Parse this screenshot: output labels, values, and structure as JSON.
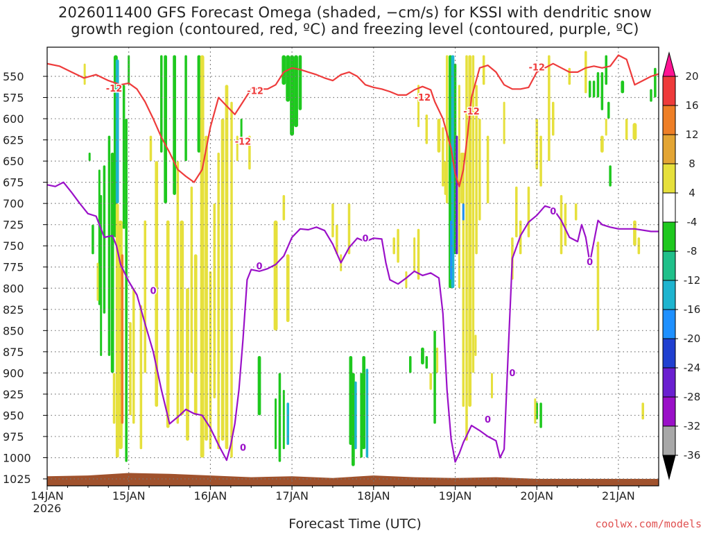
{
  "title_line1": "2026011400 GFS Forecast Omega (shaded, −cm/s) for KSSI with dendritic snow",
  "title_line2": "growth region (contoured, red, ºC) and freezing level (contoured, purple, ºC)",
  "xlabel": "Forecast Time (UTC)",
  "credit": "coolwx.com/models",
  "colors": {
    "dendritic_contour": "#ee3b3b",
    "freezing_contour": "#9a10c8",
    "terrain": "#a0522d",
    "grid": "#777777"
  },
  "chart_data": {
    "type": "heatmap",
    "x_axis": {
      "label": "Forecast Time (UTC)",
      "ticks": [
        "14JAN",
        "15JAN",
        "16JAN",
        "17JAN",
        "18JAN",
        "19JAN",
        "20JAN",
        "21JAN"
      ],
      "year_label": "2026",
      "range_days": [
        0,
        7.5
      ]
    },
    "y_axis": {
      "label": "",
      "ticks": [
        550,
        575,
        600,
        625,
        650,
        675,
        700,
        725,
        750,
        775,
        800,
        825,
        850,
        875,
        900,
        925,
        950,
        975,
        1000,
        1025
      ],
      "range": [
        1035,
        525
      ],
      "inverted": true
    },
    "colorbar": {
      "ticks": [
        20,
        16,
        12,
        8,
        4,
        -4,
        -8,
        -12,
        -16,
        -20,
        -24,
        -28,
        -32,
        -36
      ],
      "colors": [
        "#ff1493",
        "#ee3b3b",
        "#ee7f27",
        "#e3a534",
        "#e6e03c",
        "#ffffff",
        "#1ec81e",
        "#20c08a",
        "#1eb4cf",
        "#1e90ff",
        "#2040d0",
        "#6a1fd0",
        "#9a10c8",
        "#a8a8a8",
        "#000000"
      ]
    },
    "contour_labels": {
      "dendritic": "-12",
      "freezing": "0"
    },
    "series": [
      {
        "name": "-12",
        "points": [
          [
            0,
            535
          ],
          [
            0.15,
            538
          ],
          [
            0.3,
            545
          ],
          [
            0.45,
            552
          ],
          [
            0.6,
            548
          ],
          [
            0.75,
            555
          ],
          [
            0.9,
            560
          ],
          [
            1.0,
            558
          ],
          [
            1.1,
            565
          ],
          [
            1.2,
            580
          ],
          [
            1.3,
            600
          ],
          [
            1.4,
            622
          ],
          [
            1.5,
            640
          ],
          [
            1.6,
            660
          ],
          [
            1.7,
            668
          ],
          [
            1.8,
            675
          ],
          [
            1.9,
            660
          ],
          [
            2.0,
            610
          ],
          [
            2.1,
            575
          ],
          [
            2.2,
            585
          ],
          [
            2.3,
            595
          ],
          [
            2.4,
            580
          ],
          [
            2.5,
            565
          ],
          [
            2.6,
            565
          ],
          [
            2.7,
            565
          ],
          [
            2.8,
            560
          ],
          [
            2.9,
            545
          ],
          [
            3.0,
            540
          ],
          [
            3.1,
            542
          ],
          [
            3.2,
            545
          ],
          [
            3.3,
            548
          ],
          [
            3.4,
            552
          ],
          [
            3.5,
            555
          ],
          [
            3.6,
            548
          ],
          [
            3.7,
            545
          ],
          [
            3.8,
            550
          ],
          [
            3.9,
            560
          ],
          [
            4.0,
            563
          ],
          [
            4.1,
            565
          ],
          [
            4.2,
            568
          ],
          [
            4.3,
            572
          ],
          [
            4.4,
            572
          ],
          [
            4.5,
            566
          ],
          [
            4.6,
            562
          ],
          [
            4.7,
            566
          ],
          [
            4.75,
            580
          ],
          [
            4.85,
            600
          ],
          [
            4.95,
            635
          ],
          [
            5.0,
            665
          ],
          [
            5.05,
            680
          ],
          [
            5.1,
            660
          ],
          [
            5.15,
            620
          ],
          [
            5.2,
            575
          ],
          [
            5.3,
            540
          ],
          [
            5.4,
            537
          ],
          [
            5.5,
            545
          ],
          [
            5.6,
            560
          ],
          [
            5.7,
            565
          ],
          [
            5.8,
            565
          ],
          [
            5.9,
            563
          ],
          [
            6.0,
            545
          ],
          [
            6.1,
            540
          ],
          [
            6.2,
            535
          ],
          [
            6.3,
            540
          ],
          [
            6.4,
            545
          ],
          [
            6.5,
            545
          ],
          [
            6.6,
            540
          ],
          [
            6.7,
            538
          ],
          [
            6.8,
            540
          ],
          [
            6.9,
            538
          ],
          [
            7.0,
            525
          ],
          [
            7.1,
            530
          ],
          [
            7.2,
            560
          ],
          [
            7.3,
            555
          ],
          [
            7.4,
            550
          ],
          [
            7.5,
            547
          ]
        ]
      },
      {
        "name": "0",
        "points": [
          [
            0,
            678
          ],
          [
            0.1,
            680
          ],
          [
            0.2,
            675
          ],
          [
            0.3,
            687
          ],
          [
            0.4,
            700
          ],
          [
            0.5,
            712
          ],
          [
            0.6,
            715
          ],
          [
            0.7,
            740
          ],
          [
            0.8,
            738
          ],
          [
            0.85,
            750
          ],
          [
            0.9,
            772
          ],
          [
            1.0,
            792
          ],
          [
            1.1,
            808
          ],
          [
            1.2,
            842
          ],
          [
            1.3,
            875
          ],
          [
            1.4,
            920
          ],
          [
            1.5,
            960
          ],
          [
            1.6,
            952
          ],
          [
            1.7,
            943
          ],
          [
            1.8,
            948
          ],
          [
            1.9,
            950
          ],
          [
            2.0,
            965
          ],
          [
            2.1,
            985
          ],
          [
            2.2,
            1003
          ],
          [
            2.25,
            985
          ],
          [
            2.3,
            960
          ],
          [
            2.35,
            920
          ],
          [
            2.4,
            860
          ],
          [
            2.45,
            790
          ],
          [
            2.5,
            778
          ],
          [
            2.6,
            780
          ],
          [
            2.7,
            777
          ],
          [
            2.8,
            772
          ],
          [
            2.9,
            762
          ],
          [
            3.0,
            740
          ],
          [
            3.1,
            730
          ],
          [
            3.2,
            731
          ],
          [
            3.3,
            728
          ],
          [
            3.4,
            732
          ],
          [
            3.5,
            748
          ],
          [
            3.6,
            770
          ],
          [
            3.7,
            752
          ],
          [
            3.8,
            741
          ],
          [
            3.9,
            745
          ],
          [
            4.0,
            741
          ],
          [
            4.1,
            742
          ],
          [
            4.15,
            770
          ],
          [
            4.2,
            790
          ],
          [
            4.3,
            795
          ],
          [
            4.4,
            788
          ],
          [
            4.5,
            780
          ],
          [
            4.6,
            785
          ],
          [
            4.7,
            782
          ],
          [
            4.8,
            788
          ],
          [
            4.85,
            830
          ],
          [
            4.9,
            920
          ],
          [
            4.95,
            978
          ],
          [
            5.0,
            1005
          ],
          [
            5.05,
            995
          ],
          [
            5.1,
            982
          ],
          [
            5.2,
            962
          ],
          [
            5.3,
            968
          ],
          [
            5.4,
            975
          ],
          [
            5.5,
            980
          ],
          [
            5.55,
            1000
          ],
          [
            5.6,
            990
          ],
          [
            5.65,
            875
          ],
          [
            5.7,
            765
          ],
          [
            5.8,
            738
          ],
          [
            5.9,
            722
          ],
          [
            6.0,
            714
          ],
          [
            6.1,
            703
          ],
          [
            6.2,
            706
          ],
          [
            6.3,
            720
          ],
          [
            6.4,
            740
          ],
          [
            6.5,
            745
          ],
          [
            6.55,
            725
          ],
          [
            6.6,
            740
          ],
          [
            6.65,
            770
          ],
          [
            6.7,
            745
          ],
          [
            6.75,
            720
          ],
          [
            6.8,
            725
          ],
          [
            6.9,
            728
          ],
          [
            7.0,
            730
          ],
          [
            7.2,
            730
          ],
          [
            7.4,
            733
          ],
          [
            7.5,
            733
          ]
        ]
      }
    ]
  }
}
